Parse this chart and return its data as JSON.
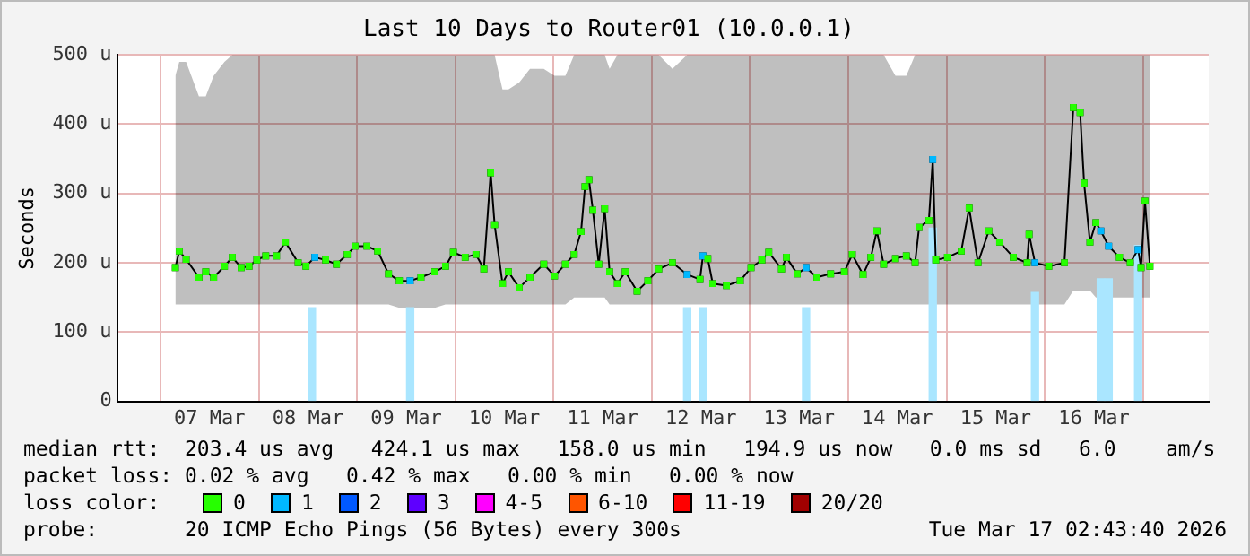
{
  "chart_data": {
    "type": "line",
    "title": "Last 10 Days to Router01 (10.0.0.1)",
    "ylabel": "Seconds",
    "legend_title": "loss color:",
    "legend": "bottom",
    "grid": true,
    "marker": "square",
    "xlim": [
      "2026-03-07T02:43",
      "2026-03-17T02:43"
    ],
    "xticks": [
      {
        "value": "2026-03-07T12:00",
        "label": "07 Mar"
      },
      {
        "value": "2026-03-08T12:00",
        "label": "08 Mar"
      },
      {
        "value": "2026-03-09T12:00",
        "label": "09 Mar"
      },
      {
        "value": "2026-03-10T12:00",
        "label": "10 Mar"
      },
      {
        "value": "2026-03-11T12:00",
        "label": "11 Mar"
      },
      {
        "value": "2026-03-12T12:00",
        "label": "12 Mar"
      },
      {
        "value": "2026-03-13T12:00",
        "label": "13 Mar"
      },
      {
        "value": "2026-03-14T12:00",
        "label": "14 Mar"
      },
      {
        "value": "2026-03-15T12:00",
        "label": "15 Mar"
      },
      {
        "value": "2026-03-16T12:00",
        "label": "16 Mar"
      }
    ],
    "ylim": [
      0,
      500
    ],
    "yticks": [
      0,
      {
        "value": 100,
        "label": "100 u"
      },
      {
        "value": 200,
        "label": "200 u"
      },
      {
        "value": 300,
        "label": "300 u"
      },
      {
        "value": 400,
        "label": "400 u"
      },
      {
        "value": 500,
        "label": "500 u"
      }
    ],
    "series": [
      {
        "type": "bar",
        "color": "#aae6ff",
        "x": [
          "2026-03-08T12:58",
          "2026-03-09T12:58",
          "2026-03-12T08:38",
          "2026-03-12T12:29",
          "2026-03-13T13:41",
          "2026-03-14T20:38",
          "2026-03-15T21:36",
          "2026-03-16T13:41",
          "2026-03-16T15:36",
          "2026-03-16T22:48"
        ],
        "values": [
          135,
          135,
          135,
          135,
          135,
          250,
          157,
          177,
          177,
          225
        ]
      },
      {
        "color": "#000000",
        "x": [
          "2026-03-07T03:36",
          "2026-03-07T04:34",
          "2026-03-07T06:14",
          "2026-03-07T09:22",
          "2026-03-07T11:02",
          "2026-03-07T12:58",
          "2026-03-07T15:36",
          "2026-03-07T17:31",
          "2026-03-07T19:41",
          "2026-03-07T21:36",
          "2026-03-07T23:31",
          "2026-03-08T01:41",
          "2026-03-08T04:19",
          "2026-03-08T06:29",
          "2026-03-08T09:36",
          "2026-03-08T11:31",
          "2026-03-08T13:41",
          "2026-03-08T16:19",
          "2026-03-08T18:58",
          "2026-03-08T21:36",
          "2026-03-08T23:31",
          "2026-03-09T02:24",
          "2026-03-09T05:02",
          "2026-03-09T07:41",
          "2026-03-09T10:19",
          "2026-03-09T12:58",
          "2026-03-09T15:36",
          "2026-03-09T18:58",
          "2026-03-09T21:36",
          "2026-03-09T23:31",
          "2026-03-10T02:24",
          "2026-03-10T05:02",
          "2026-03-10T06:58",
          "2026-03-10T08:38",
          "2026-03-10T09:36",
          "2026-03-10T11:31",
          "2026-03-10T12:58",
          "2026-03-10T15:36",
          "2026-03-10T18:14",
          "2026-03-10T21:36",
          "2026-03-11T00:14",
          "2026-03-11T02:53",
          "2026-03-11T05:02",
          "2026-03-11T06:43",
          "2026-03-11T07:41",
          "2026-03-11T08:38",
          "2026-03-11T09:36",
          "2026-03-11T11:02",
          "2026-03-11T12:29",
          "2026-03-11T13:41",
          "2026-03-11T15:36",
          "2026-03-11T17:31",
          "2026-03-11T20:24",
          "2026-03-11T23:02",
          "2026-03-12T01:41",
          "2026-03-12T05:02",
          "2026-03-12T08:38",
          "2026-03-12T11:46",
          "2026-03-12T12:29",
          "2026-03-12T13:41",
          "2026-03-12T14:53",
          "2026-03-12T18:14",
          "2026-03-12T21:36",
          "2026-03-13T00:14",
          "2026-03-13T02:53",
          "2026-03-13T04:34",
          "2026-03-13T07:41",
          "2026-03-13T08:53",
          "2026-03-13T11:31",
          "2026-03-13T13:41",
          "2026-03-13T16:19",
          "2026-03-13T19:41",
          "2026-03-13T23:02",
          "2026-03-14T00:58",
          "2026-03-14T03:36",
          "2026-03-14T05:31",
          "2026-03-14T06:58",
          "2026-03-14T08:38",
          "2026-03-14T11:31",
          "2026-03-14T14:10",
          "2026-03-14T16:19",
          "2026-03-14T17:17",
          "2026-03-14T19:41",
          "2026-03-14T20:38",
          "2026-03-14T21:22",
          "2026-03-15T00:14",
          "2026-03-15T03:36",
          "2026-03-15T05:31",
          "2026-03-15T07:41",
          "2026-03-15T10:19",
          "2026-03-15T12:58",
          "2026-03-15T16:19",
          "2026-03-15T19:41",
          "2026-03-15T20:10",
          "2026-03-15T21:36",
          "2026-03-16T00:58",
          "2026-03-16T04:48",
          "2026-03-16T06:58",
          "2026-03-16T08:38",
          "2026-03-16T09:36",
          "2026-03-16T11:02",
          "2026-03-16T12:29",
          "2026-03-16T13:41",
          "2026-03-16T15:36",
          "2026-03-16T18:14",
          "2026-03-16T20:53",
          "2026-03-16T22:48",
          "2026-03-16T23:31",
          "2026-03-17T00:29",
          "2026-03-17T01:41"
        ],
        "values": [
          193,
          217,
          205,
          179,
          187,
          179,
          195,
          208,
          193,
          195,
          204,
          210,
          210,
          230,
          200,
          195,
          208,
          204,
          198,
          212,
          224,
          224,
          217,
          184,
          174,
          174,
          179,
          187,
          195,
          215,
          208,
          212,
          191,
          330,
          255,
          170,
          187,
          164,
          179,
          198,
          181,
          198,
          212,
          245,
          310,
          320,
          276,
          198,
          278,
          187,
          170,
          187,
          159,
          174,
          191,
          200,
          183,
          176,
          210,
          206,
          170,
          167,
          174,
          193,
          204,
          215,
          191,
          208,
          184,
          193,
          179,
          184,
          187,
          212,
          183,
          208,
          246,
          198,
          206,
          210,
          200,
          251,
          261,
          349,
          204,
          208,
          217,
          279,
          200,
          246,
          230,
          208,
          200,
          241,
          200,
          195,
          200,
          424,
          417,
          315,
          230,
          258,
          246,
          224,
          208,
          200,
          219,
          193,
          289,
          195
        ],
        "lower": [
          140,
          140,
          140,
          140,
          140,
          140,
          140,
          140,
          140,
          140,
          140,
          140,
          140,
          140,
          140,
          140,
          140,
          140,
          140,
          140,
          140,
          140,
          140,
          140,
          135,
          135,
          135,
          135,
          140,
          140,
          140,
          140,
          140,
          140,
          140,
          140,
          140,
          140,
          140,
          140,
          140,
          140,
          150,
          150,
          150,
          150,
          150,
          150,
          150,
          140,
          140,
          140,
          140,
          140,
          140,
          140,
          140,
          140,
          140,
          140,
          140,
          140,
          140,
          140,
          140,
          140,
          140,
          140,
          140,
          140,
          140,
          140,
          140,
          140,
          140,
          140,
          140,
          140,
          140,
          140,
          140,
          140,
          140,
          140,
          140,
          140,
          140,
          140,
          140,
          140,
          140,
          140,
          140,
          140,
          140,
          140,
          140,
          160,
          160,
          160,
          160,
          150,
          150,
          150,
          150,
          150,
          150,
          150,
          150,
          150
        ],
        "upper": [
          470,
          490,
          490,
          440,
          440,
          470,
          490,
          500,
          500,
          500,
          500,
          500,
          500,
          500,
          500,
          500,
          500,
          500,
          500,
          500,
          500,
          500,
          500,
          500,
          500,
          500,
          500,
          500,
          500,
          500,
          500,
          500,
          500,
          500,
          500,
          450,
          450,
          460,
          480,
          480,
          470,
          470,
          500,
          500,
          500,
          500,
          500,
          500,
          500,
          480,
          500,
          500,
          500,
          500,
          500,
          480,
          500,
          500,
          500,
          500,
          500,
          500,
          500,
          500,
          500,
          500,
          500,
          500,
          500,
          500,
          500,
          500,
          500,
          500,
          500,
          500,
          500,
          500,
          470,
          470,
          500,
          500,
          500,
          500,
          500,
          500,
          500,
          500,
          500,
          500,
          500,
          500,
          500,
          500,
          500,
          500,
          500,
          500,
          500,
          500,
          500,
          500,
          500,
          500,
          500,
          500,
          500,
          500,
          500,
          500
        ]
      },
      {
        "type": "scatter",
        "name": "0",
        "color": "#26ff00",
        "x": [
          "2026-03-07T03:36",
          "2026-03-07T04:34",
          "2026-03-07T06:14",
          "2026-03-07T09:22",
          "2026-03-07T11:02",
          "2026-03-07T12:58",
          "2026-03-07T15:36",
          "2026-03-07T17:31",
          "2026-03-07T19:41",
          "2026-03-07T21:36",
          "2026-03-07T23:31",
          "2026-03-08T01:41",
          "2026-03-08T04:19",
          "2026-03-08T06:29",
          "2026-03-08T09:36",
          "2026-03-08T11:31",
          "2026-03-08T16:19",
          "2026-03-08T18:58",
          "2026-03-08T21:36",
          "2026-03-08T23:31",
          "2026-03-09T02:24",
          "2026-03-09T05:02",
          "2026-03-09T07:41",
          "2026-03-09T10:19",
          "2026-03-09T15:36",
          "2026-03-09T18:58",
          "2026-03-09T21:36",
          "2026-03-09T23:31",
          "2026-03-10T02:24",
          "2026-03-10T05:02",
          "2026-03-10T06:58",
          "2026-03-10T08:38",
          "2026-03-10T09:36",
          "2026-03-10T11:31",
          "2026-03-10T12:58",
          "2026-03-10T15:36",
          "2026-03-10T18:14",
          "2026-03-10T21:36",
          "2026-03-11T00:14",
          "2026-03-11T02:53",
          "2026-03-11T05:02",
          "2026-03-11T06:43",
          "2026-03-11T07:41",
          "2026-03-11T08:38",
          "2026-03-11T09:36",
          "2026-03-11T11:02",
          "2026-03-11T12:29",
          "2026-03-11T13:41",
          "2026-03-11T15:36",
          "2026-03-11T17:31",
          "2026-03-11T20:24",
          "2026-03-11T23:02",
          "2026-03-12T01:41",
          "2026-03-12T05:02",
          "2026-03-12T11:46",
          "2026-03-12T13:41",
          "2026-03-12T14:53",
          "2026-03-12T18:14",
          "2026-03-12T21:36",
          "2026-03-13T00:14",
          "2026-03-13T02:53",
          "2026-03-13T04:34",
          "2026-03-13T07:41",
          "2026-03-13T08:53",
          "2026-03-13T11:31",
          "2026-03-13T16:19",
          "2026-03-13T19:41",
          "2026-03-13T23:02",
          "2026-03-14T00:58",
          "2026-03-14T03:36",
          "2026-03-14T05:31",
          "2026-03-14T06:58",
          "2026-03-14T08:38",
          "2026-03-14T11:31",
          "2026-03-14T14:10",
          "2026-03-14T16:19",
          "2026-03-14T17:17",
          "2026-03-14T19:41",
          "2026-03-14T21:22",
          "2026-03-15T00:14",
          "2026-03-15T03:36",
          "2026-03-15T05:31",
          "2026-03-15T07:41",
          "2026-03-15T10:19",
          "2026-03-15T12:58",
          "2026-03-15T16:19",
          "2026-03-15T19:41",
          "2026-03-15T20:10",
          "2026-03-16T00:58",
          "2026-03-16T04:48",
          "2026-03-16T06:58",
          "2026-03-16T08:38",
          "2026-03-16T09:36",
          "2026-03-16T11:02",
          "2026-03-16T12:29",
          "2026-03-16T18:14",
          "2026-03-16T20:53",
          "2026-03-16T23:31",
          "2026-03-17T00:29",
          "2026-03-17T01:41"
        ],
        "values": [
          193,
          217,
          205,
          179,
          187,
          179,
          195,
          208,
          193,
          195,
          204,
          210,
          210,
          230,
          200,
          195,
          204,
          198,
          212,
          224,
          224,
          217,
          184,
          174,
          179,
          187,
          195,
          215,
          208,
          212,
          191,
          330,
          255,
          170,
          187,
          164,
          179,
          198,
          181,
          198,
          212,
          245,
          310,
          320,
          276,
          198,
          278,
          187,
          170,
          187,
          159,
          174,
          191,
          200,
          176,
          206,
          170,
          167,
          174,
          193,
          204,
          215,
          191,
          208,
          184,
          179,
          184,
          187,
          212,
          183,
          208,
          246,
          198,
          206,
          210,
          200,
          251,
          261,
          204,
          208,
          217,
          279,
          200,
          246,
          230,
          208,
          200,
          241,
          195,
          200,
          424,
          417,
          315,
          230,
          258,
          208,
          200,
          193,
          289,
          195
        ]
      },
      {
        "type": "scatter",
        "name": "1",
        "color": "#00b8ff",
        "x": [
          "2026-03-08T13:41",
          "2026-03-09T12:58",
          "2026-03-12T08:38",
          "2026-03-12T12:29",
          "2026-03-13T13:41",
          "2026-03-14T20:38",
          "2026-03-15T21:36",
          "2026-03-16T13:41",
          "2026-03-16T15:36",
          "2026-03-16T22:48"
        ],
        "values": [
          208,
          174,
          183,
          210,
          193,
          349,
          200,
          246,
          224,
          219
        ]
      },
      {
        "type": "scatter",
        "name": "2",
        "color": "#0059ff"
      },
      {
        "type": "scatter",
        "name": "3",
        "color": "#5e00ff"
      },
      {
        "type": "scatter",
        "name": "4-5",
        "color": "#ff00ff"
      },
      {
        "type": "scatter",
        "name": "6-10",
        "color": "#ff5500"
      },
      {
        "type": "scatter",
        "name": "11-19",
        "color": "#ff0000"
      },
      {
        "type": "scatter",
        "name": "20/20",
        "color": "#a10000"
      }
    ],
    "annotations": [
      "median rtt:  203.4 us avg   424.1 us max   158.0 us min   194.9 us now   0.0 ms sd   6.0    am/s",
      "packet loss: 0.02 % avg   0.42 % max   0.00 % min   0.00 % now",
      "probe:       20 ICMP Echo Pings (56 Bytes) every 300s",
      "Tue Mar 17 02:43:40 2026"
    ]
  }
}
